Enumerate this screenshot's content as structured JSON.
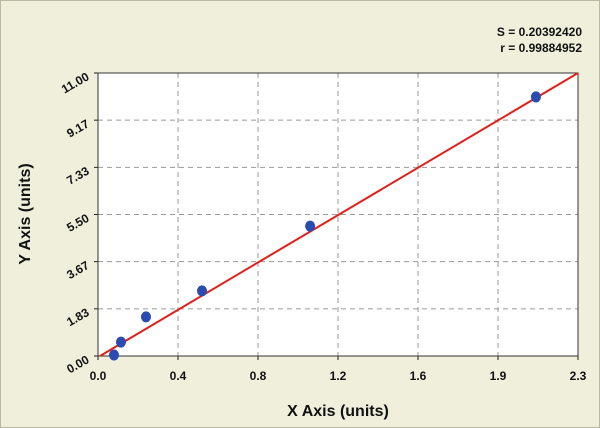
{
  "chart_data": {
    "type": "scatter",
    "xlabel": "X Axis (units)",
    "ylabel": "Y Axis (units)",
    "annotations": [
      "S = 0.20392420",
      "r = 0.99884952"
    ],
    "series": [
      {
        "color": "#2b4bb0",
        "x": [
          0.078,
          0.112,
          0.234,
          0.507,
          1.034,
          2.135
        ],
        "values": [
          0.04,
          0.54,
          1.52,
          2.53,
          5.05,
          10.07
        ]
      }
    ],
    "fit_line": {
      "color": "#e0201a",
      "x": [
        0.01,
        2.34
      ],
      "values": [
        0,
        11
      ]
    },
    "xlim": [
      0,
      2.34
    ],
    "xticks": [
      {
        "value": 0,
        "label": "0.0"
      },
      {
        "value": 0.39,
        "label": "0.4"
      },
      {
        "value": 0.78,
        "label": "0.8"
      },
      {
        "value": 1.17,
        "label": "1.2"
      },
      {
        "value": 1.56,
        "label": "1.6"
      },
      {
        "value": 1.95,
        "label": "1.9"
      },
      {
        "value": 2.34,
        "label": "2.3"
      }
    ],
    "ylim": [
      0,
      11
    ],
    "yticks": [
      {
        "value": 0,
        "label": "0.00"
      },
      {
        "value": 1.833,
        "label": "1.83"
      },
      {
        "value": 3.667,
        "label": "3.67"
      },
      {
        "value": 5.5,
        "label": "5.50"
      },
      {
        "value": 7.333,
        "label": "7.33"
      },
      {
        "value": 9.167,
        "label": "9.17"
      },
      {
        "value": 11,
        "label": "11.00"
      }
    ],
    "grid": true
  }
}
